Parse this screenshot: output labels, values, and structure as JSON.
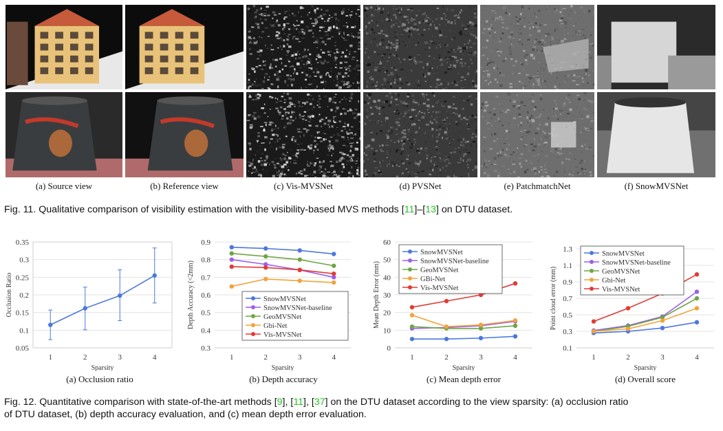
{
  "fig11": {
    "subcaptions": [
      "(a) Source view",
      "(b) Reference view",
      "(c) Vis-MVSNet",
      "(d) PVSNet",
      "(e) PatchmatchNet",
      "(f) SnowMVSNet"
    ],
    "caption": {
      "prefix": "Fig. 11. Qualitative comparison of visibility estimation with the visibility-based MVS methods [",
      "ref1": "11",
      "mid": "]–[",
      "ref2": "13",
      "suffix": "] on DTU dataset."
    }
  },
  "fig12": {
    "subcaptions": [
      "(a) Occlusion ratio",
      "(b) Depth accuracy",
      "(c) Mean depth error",
      "(d) Overall score"
    ],
    "caption_line1": {
      "prefix": "Fig. 12. Quantitative comparison with state-of-the-art methods [",
      "ref1": "9",
      "sep1": "], [",
      "ref2": "11",
      "sep2": "], [",
      "ref3": "37",
      "suffix": "] on the DTU dataset according to the view sparsity: (a) occlusion ratio"
    },
    "caption_line2": "of DTU dataset, (b) depth accuracy evaluation, and (c) mean depth error evaluation."
  },
  "colors": {
    "blue": "#4c78dd",
    "purple": "#9c5fee",
    "green": "#6fa543",
    "orange": "#f2a33a",
    "red": "#e23a35",
    "ref_green": "#22c422"
  },
  "chart_data": [
    {
      "type": "line",
      "xlabel": "Sparsity",
      "ylabel": "Occlusion Ratio",
      "categories": [
        "1",
        "2",
        "3",
        "4"
      ],
      "ylim": [
        0.05,
        0.35
      ],
      "yticks": [
        "0.05",
        "0.1",
        "0.15",
        "0.2",
        "0.25",
        "0.3",
        "0.35"
      ],
      "series": [
        {
          "values": [
            0.115,
            0.162,
            0.198,
            0.255
          ],
          "error": [
            [
              0.073,
              0.157
            ],
            [
              0.101,
              0.222
            ],
            [
              0.127,
              0.271
            ],
            [
              0.177,
              0.333
            ]
          ],
          "color": "#4c78dd"
        }
      ],
      "grid": true
    },
    {
      "type": "line",
      "xlabel": "Sparsity",
      "ylabel": "Depth Accuracy (<2mm)",
      "categories": [
        "1",
        "2",
        "3",
        "4"
      ],
      "ylim": [
        0.3,
        0.9
      ],
      "yticks": [
        "0.3",
        "0.4",
        "0.5",
        "0.6",
        "0.7",
        "0.8",
        "0.9"
      ],
      "legend_placement": "bottom-right",
      "series": [
        {
          "name": "SnowMVSNet",
          "values": [
            0.87,
            0.863,
            0.852,
            0.832
          ],
          "color": "#4c78dd"
        },
        {
          "name": "SnowMVSNet-baseline",
          "values": [
            0.8,
            0.773,
            0.741,
            0.7
          ],
          "color": "#9c5fee"
        },
        {
          "name": "GeoMVSNet",
          "values": [
            0.835,
            0.818,
            0.8,
            0.765
          ],
          "color": "#6fa543"
        },
        {
          "name": "Gbi-Net",
          "values": [
            0.648,
            0.69,
            0.68,
            0.67
          ],
          "color": "#f2a33a"
        },
        {
          "name": "Vis-MVSNet",
          "values": [
            0.76,
            0.755,
            0.742,
            0.72
          ],
          "color": "#e23a35"
        }
      ],
      "grid": true
    },
    {
      "type": "line",
      "xlabel": "Sparsity",
      "ylabel": "Mean Depth Error (mm)",
      "categories": [
        "1",
        "2",
        "3",
        "4"
      ],
      "ylim": [
        0,
        60
      ],
      "yticks": [
        "0",
        "10",
        "20",
        "30",
        "40",
        "50",
        "60"
      ],
      "legend_placement": "top-left",
      "series": [
        {
          "name": "SnowMVSNet",
          "values": [
            5,
            5,
            5.5,
            6.5
          ],
          "color": "#4c78dd"
        },
        {
          "name": "SnowMVSNet-baseline",
          "values": [
            11,
            11.5,
            12.5,
            15
          ],
          "color": "#9c5fee"
        },
        {
          "name": "GeoMVSNet",
          "values": [
            12,
            11,
            11,
            12.5
          ],
          "color": "#6fa543"
        },
        {
          "name": "GBi-Net",
          "values": [
            18.5,
            12,
            13,
            15.5
          ],
          "color": "#f2a33a"
        },
        {
          "name": "Vis-MVSNet",
          "values": [
            23,
            26.5,
            30,
            36.5
          ],
          "color": "#e23a35"
        }
      ],
      "grid": true
    },
    {
      "type": "line",
      "xlabel": "Sparsity",
      "ylabel": "Point cloud error (mm)",
      "categories": [
        "1",
        "2",
        "3",
        "4"
      ],
      "ylim": [
        0.1,
        1.3
      ],
      "yticks": [
        "0.1",
        "0.3",
        "0.5",
        "0.7",
        "0.9",
        "1.1",
        "1.3"
      ],
      "legend_placement": "top-left",
      "series": [
        {
          "name": "SnowMVSNet",
          "values": [
            0.28,
            0.3,
            0.34,
            0.41
          ],
          "color": "#4c78dd"
        },
        {
          "name": "SnowMVSNet-baseline",
          "values": [
            0.31,
            0.37,
            0.48,
            0.78
          ],
          "color": "#9c5fee"
        },
        {
          "name": "GeoMVSNet",
          "values": [
            0.3,
            0.36,
            0.47,
            0.7
          ],
          "color": "#6fa543"
        },
        {
          "name": "Gbi-Net",
          "values": [
            0.3,
            0.33,
            0.43,
            0.58
          ],
          "color": "#f2a33a"
        },
        {
          "name": "Vis-MVSNet",
          "values": [
            0.42,
            0.58,
            0.76,
            0.99
          ],
          "color": "#e23a35"
        }
      ],
      "grid": true
    }
  ]
}
